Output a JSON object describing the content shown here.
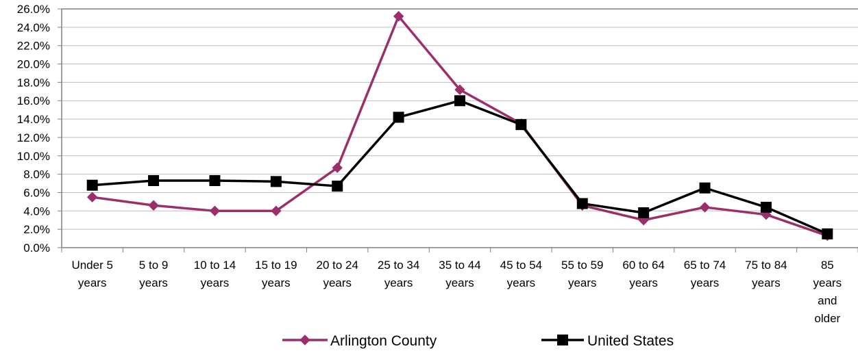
{
  "chart_data": {
    "type": "line",
    "title": "",
    "xlabel": "",
    "ylabel": "",
    "categories": [
      "Under 5 years",
      "5 to 9 years",
      "10 to 14 years",
      "15 to 19 years",
      "20 to 24 years",
      "25 to 34 years",
      "35 to 44 years",
      "45 to 54 years",
      "55 to 59 years",
      "60 to 64 years",
      "65 to 74 years",
      "75 to 84 years",
      "85 years and older"
    ],
    "series": [
      {
        "name": "Arlington County",
        "color": "#9c2e6b",
        "marker": "diamond",
        "values": [
          5.5,
          4.6,
          4.0,
          4.0,
          8.7,
          25.2,
          17.2,
          13.5,
          4.6,
          3.0,
          4.4,
          3.6,
          1.3
        ]
      },
      {
        "name": "United States",
        "color": "#000000",
        "marker": "square",
        "values": [
          6.8,
          7.3,
          7.3,
          7.2,
          6.7,
          14.2,
          16.0,
          13.4,
          4.8,
          3.8,
          6.5,
          4.4,
          1.5
        ]
      }
    ],
    "ylim": [
      0,
      26
    ],
    "y_ticks": [
      "0.0%",
      "2.0%",
      "4.0%",
      "6.0%",
      "8.0%",
      "10.0%",
      "12.0%",
      "14.0%",
      "16.0%",
      "18.0%",
      "20.0%",
      "22.0%",
      "24.0%",
      "26.0%"
    ],
    "x_tick_lines": [
      [
        "Under 5",
        "years"
      ],
      [
        "5 to 9",
        "years"
      ],
      [
        "10 to 14",
        "years"
      ],
      [
        "15 to 19",
        "years"
      ],
      [
        "20 to 24",
        "years"
      ],
      [
        "25 to 34",
        "years"
      ],
      [
        "35 to 44",
        "years"
      ],
      [
        "45 to 54",
        "years"
      ],
      [
        "55 to 59",
        "years"
      ],
      [
        "60 to 64",
        "years"
      ],
      [
        "65 to 74",
        "years"
      ],
      [
        "75 to 84",
        "years"
      ],
      [
        "85",
        "years",
        "and",
        "older"
      ]
    ],
    "grid": true,
    "legend_position": "bottom"
  }
}
